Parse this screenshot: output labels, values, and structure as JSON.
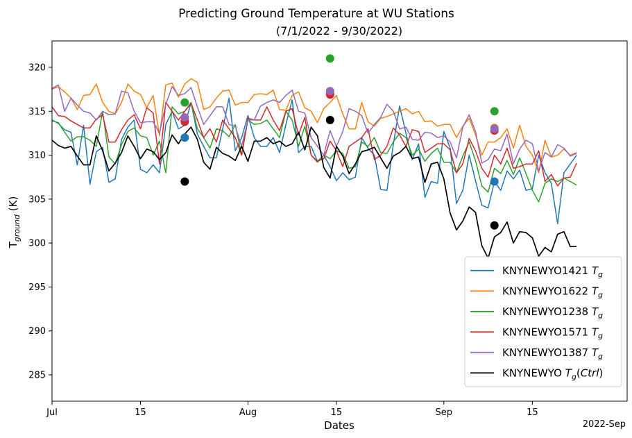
{
  "chart_data": {
    "type": "line",
    "title": "Predicting Ground Temperature at WU Stations",
    "subtitle": "(7/1/2022 - 9/30/2022)",
    "xlabel": "Dates",
    "ylabel": "T_ground (K)",
    "x_offset_label": "2022-Sep",
    "xlim": [
      "2022-07-01",
      "2022-09-30"
    ],
    "ylim": [
      282,
      323
    ],
    "x_ticks": [
      {
        "date": "2022-07-01",
        "label": "Jul"
      },
      {
        "date": "2022-07-15",
        "label": "15"
      },
      {
        "date": "2022-08-01",
        "label": "Aug"
      },
      {
        "date": "2022-08-15",
        "label": "15"
      },
      {
        "date": "2022-09-01",
        "label": "Sep"
      },
      {
        "date": "2022-09-15",
        "label": "15"
      }
    ],
    "y_ticks": [
      285,
      290,
      295,
      300,
      305,
      310,
      315,
      320
    ],
    "grid": false,
    "legend_position": "lower-right",
    "series_start_date": "2022-07-01",
    "series": [
      {
        "name": "KNYNEWYO1421",
        "color": "#1f77b4",
        "values": [
          314.0,
          313.6,
          312.9,
          312.6,
          308.9,
          313.4,
          306.7,
          310.4,
          310.9,
          306.9,
          307.3,
          311.8,
          313.2,
          314.0,
          308.4,
          308.0,
          308.9,
          308.0,
          313.5,
          315.0,
          313.0,
          313.4,
          316.0,
          312.4,
          311.0,
          309.7,
          309.7,
          313.0,
          316.5,
          310.5,
          312.0,
          314.5,
          312.0,
          311.0,
          311.0,
          312.0,
          310.3,
          313.5,
          316.3,
          310.3,
          311.0,
          311.0,
          309.3,
          310.0,
          308.7,
          307.1,
          308.0,
          307.2,
          307.5,
          312.0,
          310.8,
          310.0,
          306.1,
          306.0,
          311.2,
          315.6,
          312.5,
          309.5,
          311.3,
          305.2,
          307.0,
          306.8,
          312.7,
          310.8,
          304.5,
          306.0,
          310.0,
          307.1,
          304.3,
          304.0,
          307.0,
          306.0,
          308.2,
          307.3,
          308.3,
          306.0,
          306.2,
          310.0,
          308.0,
          306.8,
          302.2,
          308.0,
          309.0,
          310.0
        ]
      },
      {
        "name": "KNYNEWYO1622",
        "color": "#ff7f0e",
        "values": [
          317.5,
          317.8,
          317.2,
          316.5,
          315.2,
          316.8,
          316.9,
          318.1,
          316.0,
          315.0,
          314.7,
          316.0,
          318.1,
          317.3,
          316.9,
          315.4,
          316.8,
          312.2,
          318.0,
          318.2,
          316.6,
          318.1,
          318.7,
          318.3,
          315.2,
          315.5,
          316.5,
          317.3,
          317.4,
          315.7,
          316.0,
          316.0,
          316.9,
          317.0,
          316.9,
          317.4,
          315.2,
          315.1,
          316.8,
          317.2,
          315.4,
          315.0,
          313.7,
          315.3,
          316.0,
          316.8,
          314.7,
          313.0,
          313.0,
          316.0,
          313.8,
          313.3,
          314.2,
          314.4,
          314.7,
          315.0,
          315.3,
          314.7,
          315.0,
          313.8,
          313.9,
          313.3,
          313.5,
          313.5,
          312.0,
          313.3,
          314.2,
          312.3,
          310.0,
          311.5,
          311.5,
          312.0,
          313.0,
          310.8,
          313.4,
          311.0,
          310.0,
          308.0,
          311.7,
          309.8,
          310.0,
          310.7,
          310.0,
          310.3
        ]
      },
      {
        "name": "KNYNEWYO1238",
        "color": "#2ca02c",
        "values": [
          313.9,
          313.7,
          312.6,
          311.6,
          312.1,
          312.1,
          311.7,
          311.0,
          315.0,
          309.8,
          309.0,
          311.2,
          312.7,
          313.1,
          312.2,
          312.0,
          310.0,
          311.6,
          308.0,
          315.5,
          314.7,
          315.0,
          316.0,
          313.0,
          312.0,
          310.8,
          313.0,
          312.8,
          312.1,
          313.5,
          310.0,
          314.0,
          313.5,
          313.6,
          314.0,
          313.0,
          312.0,
          315.0,
          314.0,
          311.0,
          313.3,
          310.0,
          309.2,
          310.0,
          309.6,
          310.5,
          310.2,
          308.5,
          308.7,
          311.5,
          311.0,
          312.0,
          310.3,
          310.2,
          311.5,
          312.5,
          312.0,
          310.0,
          310.7,
          309.3,
          310.2,
          310.8,
          309.2,
          309.2,
          308.0,
          309.9,
          311.5,
          309.4,
          306.5,
          305.8,
          308.5,
          307.9,
          309.4,
          307.8,
          309.7,
          307.9,
          306.0,
          304.7,
          306.8,
          307.3,
          307.0,
          307.4,
          307.0,
          306.6
        ]
      },
      {
        "name": "KNYNEWYO1571",
        "color": "#d62728",
        "values": [
          315.5,
          314.5,
          314.4,
          313.9,
          313.5,
          313.1,
          313.1,
          314.1,
          314.6,
          311.5,
          311.5,
          312.9,
          314.0,
          314.6,
          313.0,
          315.4,
          314.8,
          309.0,
          316.0,
          315.0,
          314.0,
          315.0,
          315.9,
          314.0,
          312.0,
          313.0,
          311.5,
          314.0,
          313.0,
          312.0,
          310.0,
          314.2,
          314.0,
          314.0,
          315.5,
          314.0,
          312.8,
          315.0,
          315.3,
          312.3,
          314.3,
          310.0,
          309.3,
          309.6,
          311.6,
          310.5,
          308.7,
          311.0,
          311.5,
          312.0,
          313.0,
          309.5,
          310.0,
          311.0,
          313.1,
          312.3,
          311.0,
          312.9,
          312.7,
          310.3,
          310.8,
          311.3,
          311.3,
          310.6,
          308.0,
          309.0,
          311.9,
          310.5,
          308.5,
          307.5,
          310.0,
          309.0,
          310.8,
          308.5,
          308.7,
          309.0,
          309.0,
          310.5,
          307.0,
          307.8,
          306.5,
          307.4,
          307.5,
          309.1
        ]
      },
      {
        "name": "KNYNEWYO1387",
        "color": "#9467bd",
        "values": [
          317.6,
          318.0,
          315.0,
          316.5,
          315.7,
          315.0,
          314.8,
          314.0,
          315.0,
          314.6,
          314.7,
          317.3,
          317.1,
          315.0,
          313.7,
          313.8,
          313.8,
          312.5,
          315.8,
          317.8,
          316.8,
          317.0,
          317.7,
          315.5,
          313.5,
          314.5,
          315.5,
          315.5,
          313.5,
          313.3,
          311.0,
          314.0,
          314.0,
          315.6,
          316.0,
          316.3,
          316.0,
          316.8,
          317.4,
          315.0,
          314.8,
          312.0,
          311.0,
          310.0,
          312.8,
          311.0,
          312.7,
          315.3,
          315.0,
          314.5,
          312.5,
          313.5,
          314.3,
          315.8,
          315.0,
          313.0,
          313.2,
          311.8,
          311.7,
          312.6,
          312.5,
          312.0,
          312.2,
          311.5,
          309.7,
          313.2,
          314.6,
          312.7,
          309.1,
          309.5,
          310.7,
          310.5,
          312.4,
          309.0,
          310.7,
          311.7,
          311.3,
          308.2,
          310.3,
          309.8,
          311.2,
          310.8,
          309.9,
          310.2
        ]
      },
      {
        "name": "KNYNEWYO T_g(Ctrl)",
        "color": "#000000",
        "values": [
          311.7,
          311.1,
          310.8,
          311.0,
          309.9,
          308.9,
          308.9,
          312.2,
          310.5,
          308.2,
          309.1,
          310.3,
          312.2,
          311.0,
          309.6,
          310.7,
          310.4,
          309.5,
          310.3,
          312.3,
          311.3,
          312.4,
          313.2,
          311.8,
          309.2,
          308.4,
          310.9,
          310.2,
          309.9,
          309.4,
          311.0,
          309.3,
          311.6,
          311.6,
          312.0,
          311.3,
          311.6,
          311.0,
          311.3,
          312.6,
          310.6,
          313.2,
          312.2,
          308.6,
          307.4,
          311.0,
          309.9,
          307.9,
          309.0,
          310.4,
          310.6,
          310.9,
          309.7,
          308.5,
          309.9,
          310.3,
          311.0,
          309.6,
          309.8,
          306.9,
          309.0,
          309.2,
          307.3,
          303.4,
          301.5,
          302.5,
          304.1,
          303.5,
          299.7,
          298.3,
          300.7,
          301.2,
          302.4,
          300.0,
          301.3,
          301.2,
          300.6,
          298.5,
          299.5,
          299.0,
          301.0,
          301.3,
          299.6,
          299.6
        ]
      }
    ],
    "markers": [
      {
        "date": "2022-07-22",
        "values": [
          {
            "series": "KNYNEWYO1421",
            "y": 312.0
          },
          {
            "series": "KNYNEWYO1622",
            "y": 314.0
          },
          {
            "series": "KNYNEWYO1238",
            "y": 316.0
          },
          {
            "series": "KNYNEWYO1571",
            "y": 313.8
          },
          {
            "series": "KNYNEWYO1387",
            "y": 314.3
          },
          {
            "series": "KNYNEWYO T_g(Ctrl)",
            "y": 307.0
          }
        ]
      },
      {
        "date": "2022-08-14",
        "values": [
          {
            "series": "KNYNEWYO1421",
            "y": 317.0
          },
          {
            "series": "KNYNEWYO1622",
            "y": 317.2
          },
          {
            "series": "KNYNEWYO1238",
            "y": 321.0
          },
          {
            "series": "KNYNEWYO1571",
            "y": 316.9
          },
          {
            "series": "KNYNEWYO1387",
            "y": 317.3
          },
          {
            "series": "KNYNEWYO T_g(Ctrl)",
            "y": 314.0
          }
        ]
      },
      {
        "date": "2022-09-09",
        "values": [
          {
            "series": "KNYNEWYO1421",
            "y": 307.0
          },
          {
            "series": "KNYNEWYO1622",
            "y": 313.1
          },
          {
            "series": "KNYNEWYO1238",
            "y": 315.0
          },
          {
            "series": "KNYNEWYO1571",
            "y": 312.8
          },
          {
            "series": "KNYNEWYO1387",
            "y": 313.0
          },
          {
            "series": "KNYNEWYO T_g(Ctrl)",
            "y": 302.0
          }
        ]
      }
    ]
  }
}
